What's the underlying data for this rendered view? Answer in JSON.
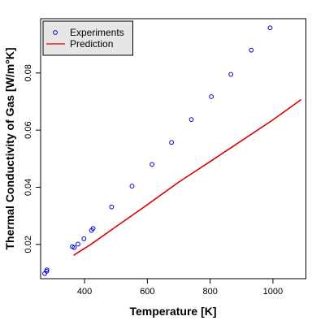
{
  "chart_data": {
    "type": "scatter",
    "xlabel": "Temperature [K]",
    "ylabel": "Thermal Conductivity of Gas [W/m°K]",
    "xlim": [
      260,
      1105
    ],
    "ylim": [
      0.008,
      0.099
    ],
    "xticks": [
      400,
      600,
      800,
      1000
    ],
    "yticks": [
      0.02,
      0.04,
      0.06,
      0.08
    ],
    "xtick_labels": [
      "400",
      "600",
      "800",
      "1000"
    ],
    "ytick_labels": [
      "0.02",
      "0.04",
      "0.06",
      "0.08"
    ],
    "legend_position": "top-left",
    "series": [
      {
        "name": "Experiments",
        "kind": "points",
        "color": "#0000cc",
        "points": [
          {
            "x": 273,
            "y": 0.0098
          },
          {
            "x": 279,
            "y": 0.0106
          },
          {
            "x": 280,
            "y": 0.0111
          },
          {
            "x": 361,
            "y": 0.0192
          },
          {
            "x": 367,
            "y": 0.0189
          },
          {
            "x": 379,
            "y": 0.0201
          },
          {
            "x": 398,
            "y": 0.022
          },
          {
            "x": 422,
            "y": 0.0249
          },
          {
            "x": 427,
            "y": 0.0256
          },
          {
            "x": 486,
            "y": 0.0331
          },
          {
            "x": 551,
            "y": 0.0404
          },
          {
            "x": 615,
            "y": 0.048
          },
          {
            "x": 677,
            "y": 0.0557
          },
          {
            "x": 740,
            "y": 0.0637
          },
          {
            "x": 804,
            "y": 0.0717
          },
          {
            "x": 866,
            "y": 0.0795
          },
          {
            "x": 931,
            "y": 0.088
          },
          {
            "x": 991,
            "y": 0.0958
          }
        ]
      },
      {
        "name": "Prediction",
        "kind": "line",
        "color": "#dd0000",
        "points": [
          {
            "x": 365,
            "y": 0.0162
          },
          {
            "x": 420,
            "y": 0.02
          },
          {
            "x": 500,
            "y": 0.0262
          },
          {
            "x": 600,
            "y": 0.0339
          },
          {
            "x": 700,
            "y": 0.0418
          },
          {
            "x": 800,
            "y": 0.049
          },
          {
            "x": 900,
            "y": 0.0563
          },
          {
            "x": 1000,
            "y": 0.0636
          },
          {
            "x": 1090,
            "y": 0.0707
          }
        ]
      }
    ]
  }
}
